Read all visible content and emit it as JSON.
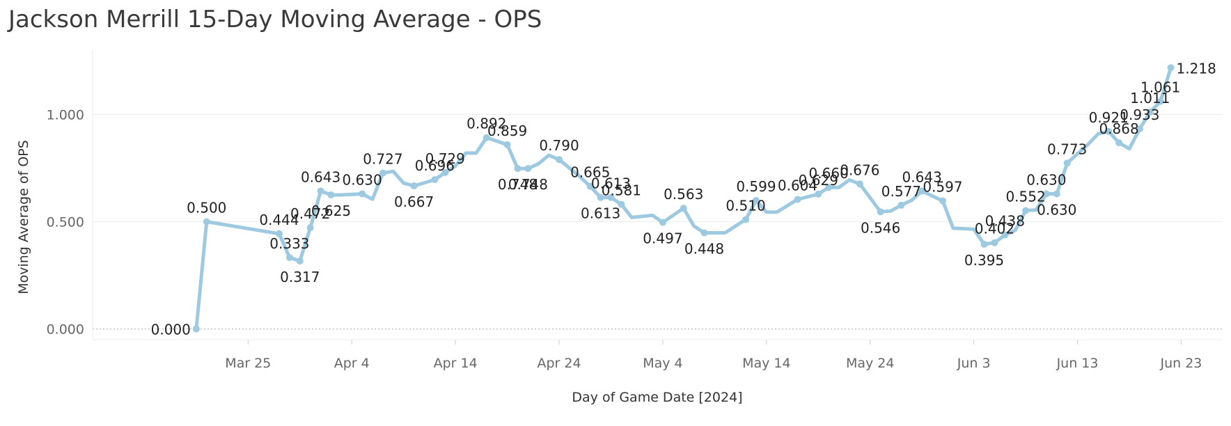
{
  "chart_data": {
    "type": "line",
    "title": "Jackson Merrill 15-Day Moving Average - OPS",
    "xlabel": "Day of Game Date [2024]",
    "ylabel": "Moving Average of OPS",
    "ylim": [
      -0.05,
      1.3
    ],
    "yticks": [
      0.0,
      0.5,
      1.0
    ],
    "ytick_labels": [
      "0.000",
      "0.500",
      "1.000"
    ],
    "xlim": [
      "Mar 10",
      "Jun 27"
    ],
    "xticks": [
      "Mar 25",
      "Apr 4",
      "Apr 14",
      "Apr 24",
      "May 4",
      "May 14",
      "May 24",
      "Jun 3",
      "Jun 13",
      "Jun 23"
    ],
    "grid": true,
    "series_color": "#9ecae1",
    "series": [
      {
        "name": "Moving Average of OPS",
        "points": [
          {
            "date": "Mar 20",
            "value": 0.0,
            "label": "0.000"
          },
          {
            "date": "Mar 21",
            "value": 0.5,
            "label": "0.500"
          },
          {
            "date": "Mar 28",
            "value": 0.444,
            "label": "0.444"
          },
          {
            "date": "Mar 29",
            "value": 0.333,
            "label": "0.333"
          },
          {
            "date": "Mar 30",
            "value": 0.317,
            "label": "0.317"
          },
          {
            "date": "Mar 31",
            "value": 0.472,
            "label": "0.472"
          },
          {
            "date": "Apr 1",
            "value": 0.643,
            "label": "0.643"
          },
          {
            "date": "Apr 2",
            "value": 0.625,
            "label": "0.625"
          },
          {
            "date": "Apr 3",
            "value": 0.625
          },
          {
            "date": "Apr 5",
            "value": 0.63,
            "label": "0.630"
          },
          {
            "date": "Apr 6",
            "value": 0.605
          },
          {
            "date": "Apr 7",
            "value": 0.727,
            "label": "0.727"
          },
          {
            "date": "Apr 8",
            "value": 0.735
          },
          {
            "date": "Apr 9",
            "value": 0.68
          },
          {
            "date": "Apr 10",
            "value": 0.667,
            "label": "0.667"
          },
          {
            "date": "Apr 12",
            "value": 0.696,
            "label": "0.696"
          },
          {
            "date": "Apr 13",
            "value": 0.729,
            "label": "0.729"
          },
          {
            "date": "Apr 14",
            "value": 0.76
          },
          {
            "date": "Apr 15",
            "value": 0.82
          },
          {
            "date": "Apr 16",
            "value": 0.82
          },
          {
            "date": "Apr 17",
            "value": 0.892,
            "label": "0.892"
          },
          {
            "date": "Apr 19",
            "value": 0.859,
            "label": "0.859"
          },
          {
            "date": "Apr 20",
            "value": 0.748,
            "label": "0.748"
          },
          {
            "date": "Apr 21",
            "value": 0.748,
            "label": "0.748"
          },
          {
            "date": "Apr 22",
            "value": 0.77
          },
          {
            "date": "Apr 23",
            "value": 0.81
          },
          {
            "date": "Apr 24",
            "value": 0.79,
            "label": "0.790"
          },
          {
            "date": "Apr 26",
            "value": 0.71
          },
          {
            "date": "Apr 27",
            "value": 0.665,
            "label": "0.665"
          },
          {
            "date": "Apr 28",
            "value": 0.613,
            "label": "0.613"
          },
          {
            "date": "Apr 29",
            "value": 0.613,
            "label": "0.613"
          },
          {
            "date": "Apr 30",
            "value": 0.581,
            "label": "0.581"
          },
          {
            "date": "May 1",
            "value": 0.52
          },
          {
            "date": "May 3",
            "value": 0.53
          },
          {
            "date": "May 4",
            "value": 0.497,
            "label": "0.497"
          },
          {
            "date": "May 6",
            "value": 0.563,
            "label": "0.563"
          },
          {
            "date": "May 7",
            "value": 0.48
          },
          {
            "date": "May 8",
            "value": 0.448,
            "label": "0.448"
          },
          {
            "date": "May 10",
            "value": 0.448
          },
          {
            "date": "May 12",
            "value": 0.51,
            "label": "0.510"
          },
          {
            "date": "May 13",
            "value": 0.599,
            "label": "0.599"
          },
          {
            "date": "May 14",
            "value": 0.545
          },
          {
            "date": "May 15",
            "value": 0.545
          },
          {
            "date": "May 17",
            "value": 0.604,
            "label": "0.604"
          },
          {
            "date": "May 19",
            "value": 0.629,
            "label": "0.629"
          },
          {
            "date": "May 20",
            "value": 0.66,
            "label": "0.660"
          },
          {
            "date": "May 21",
            "value": 0.66
          },
          {
            "date": "May 22",
            "value": 0.695
          },
          {
            "date": "May 23",
            "value": 0.676,
            "label": "0.676"
          },
          {
            "date": "May 25",
            "value": 0.546,
            "label": "0.546"
          },
          {
            "date": "May 26",
            "value": 0.55
          },
          {
            "date": "May 27",
            "value": 0.577,
            "label": "0.577"
          },
          {
            "date": "May 28",
            "value": 0.6
          },
          {
            "date": "May 29",
            "value": 0.643,
            "label": "0.643"
          },
          {
            "date": "May 31",
            "value": 0.597,
            "label": "0.597"
          },
          {
            "date": "Jun 1",
            "value": 0.47
          },
          {
            "date": "Jun 3",
            "value": 0.465
          },
          {
            "date": "Jun 4",
            "value": 0.395,
            "label": "0.395"
          },
          {
            "date": "Jun 5",
            "value": 0.402,
            "label": "0.402"
          },
          {
            "date": "Jun 6",
            "value": 0.438,
            "label": "0.438"
          },
          {
            "date": "Jun 7",
            "value": 0.46
          },
          {
            "date": "Jun 8",
            "value": 0.552,
            "label": "0.552"
          },
          {
            "date": "Jun 9",
            "value": 0.555
          },
          {
            "date": "Jun 10",
            "value": 0.63,
            "label": "0.630"
          },
          {
            "date": "Jun 11",
            "value": 0.63,
            "label": "0.630"
          },
          {
            "date": "Jun 12",
            "value": 0.773,
            "label": "0.773"
          },
          {
            "date": "Jun 14",
            "value": 0.86
          },
          {
            "date": "Jun 15",
            "value": 0.91
          },
          {
            "date": "Jun 16",
            "value": 0.921,
            "label": "0.921"
          },
          {
            "date": "Jun 17",
            "value": 0.868,
            "label": "0.868"
          },
          {
            "date": "Jun 18",
            "value": 0.84
          },
          {
            "date": "Jun 19",
            "value": 0.933,
            "label": "0.933"
          },
          {
            "date": "Jun 20",
            "value": 1.011,
            "label": "1.011"
          },
          {
            "date": "Jun 21",
            "value": 1.061,
            "label": "1.061"
          },
          {
            "date": "Jun 22",
            "value": 1.218,
            "label": "1.218"
          }
        ]
      }
    ]
  }
}
